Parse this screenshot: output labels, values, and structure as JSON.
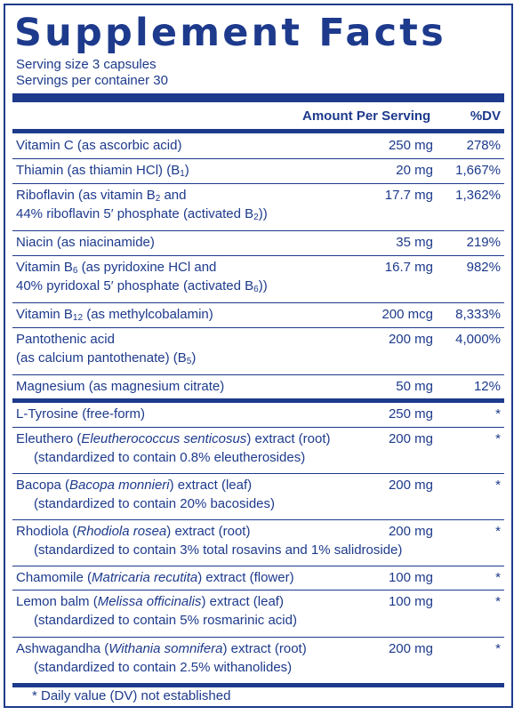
{
  "title": "Supplement Facts",
  "serving_size": "Serving size  3 capsules",
  "servings_per_container": "Servings per container  30",
  "header": {
    "amount": "Amount Per Serving",
    "dv": "%DV"
  },
  "vitamins": [
    {
      "name": "Vitamin C (as ascorbic acid)",
      "amount": "250 mg",
      "dv": "278%"
    },
    {
      "name_a": "Thiamin (as thiamin HCl) (B",
      "sub_a": "1",
      "name_b": ")",
      "amount": "20 mg",
      "dv": "1,667%"
    },
    {
      "name_a": "Riboflavin (as vitamin B",
      "sub_a": "2",
      "name_b": " and",
      "line2_a": "44% riboflavin 5′ phosphate (activated B",
      "sub_b": "2",
      "line2_b": "))",
      "amount": "17.7 mg",
      "dv": "1,362%"
    },
    {
      "name": "Niacin (as niacinamide)",
      "amount": "35 mg",
      "dv": "219%"
    },
    {
      "name_a": "Vitamin B",
      "sub_a": "6",
      "name_b": " (as pyridoxine HCl and",
      "line2_a": "40% pyridoxal 5′ phosphate (activated B",
      "sub_b": "6",
      "line2_b": "))",
      "amount": "16.7 mg",
      "dv": "982%"
    },
    {
      "name_a": "Vitamin B",
      "sub_a": "12",
      "name_b": " (as methylcobalamin)",
      "amount": "200 mcg",
      "dv": "8,333%"
    },
    {
      "name": "Pantothenic acid",
      "line2_a": "(as calcium pantothenate) (B",
      "sub_b": "5",
      "line2_b": ")",
      "amount": "200 mg",
      "dv": "4,000%"
    },
    {
      "name": "Magnesium (as magnesium citrate)",
      "amount": "50 mg",
      "dv": "12%"
    }
  ],
  "others": [
    {
      "name": "L-Tyrosine (free-form)",
      "amount": "250 mg",
      "dv": "*"
    },
    {
      "pre": "Eleuthero (",
      "latin": "Eleutherococcus senticosus",
      "post": ") extract (root)",
      "line2": "(standardized to contain 0.8% eleutherosides)",
      "amount": "200 mg",
      "dv": "*"
    },
    {
      "pre": "Bacopa (",
      "latin": "Bacopa monnieri",
      "post": ") extract (leaf)",
      "line2": "(standardized to contain 20% bacosides)",
      "amount": "200 mg",
      "dv": "*"
    },
    {
      "pre": "Rhodiola (",
      "latin": "Rhodiola rosea",
      "post": ") extract (root)",
      "line2": "(standardized to contain 3% total rosavins and 1% salidroside)",
      "amount": "200 mg",
      "dv": "*"
    },
    {
      "pre": "Chamomile (",
      "latin": "Matricaria recutita",
      "post": ") extract (flower)",
      "amount": "100 mg",
      "dv": "*"
    },
    {
      "pre": "Lemon balm (",
      "latin": "Melissa officinalis",
      "post": ") extract (leaf)",
      "line2": "(standardized to contain 5% rosmarinic acid)",
      "amount": "100 mg",
      "dv": "*"
    },
    {
      "pre": "Ashwagandha (",
      "latin": "Withania somnifera",
      "post": ") extract (root)",
      "line2": "(standardized to contain 2.5% withanolides)",
      "amount": "200 mg",
      "dv": "*"
    }
  ],
  "footnote": "* Daily value (DV) not established"
}
